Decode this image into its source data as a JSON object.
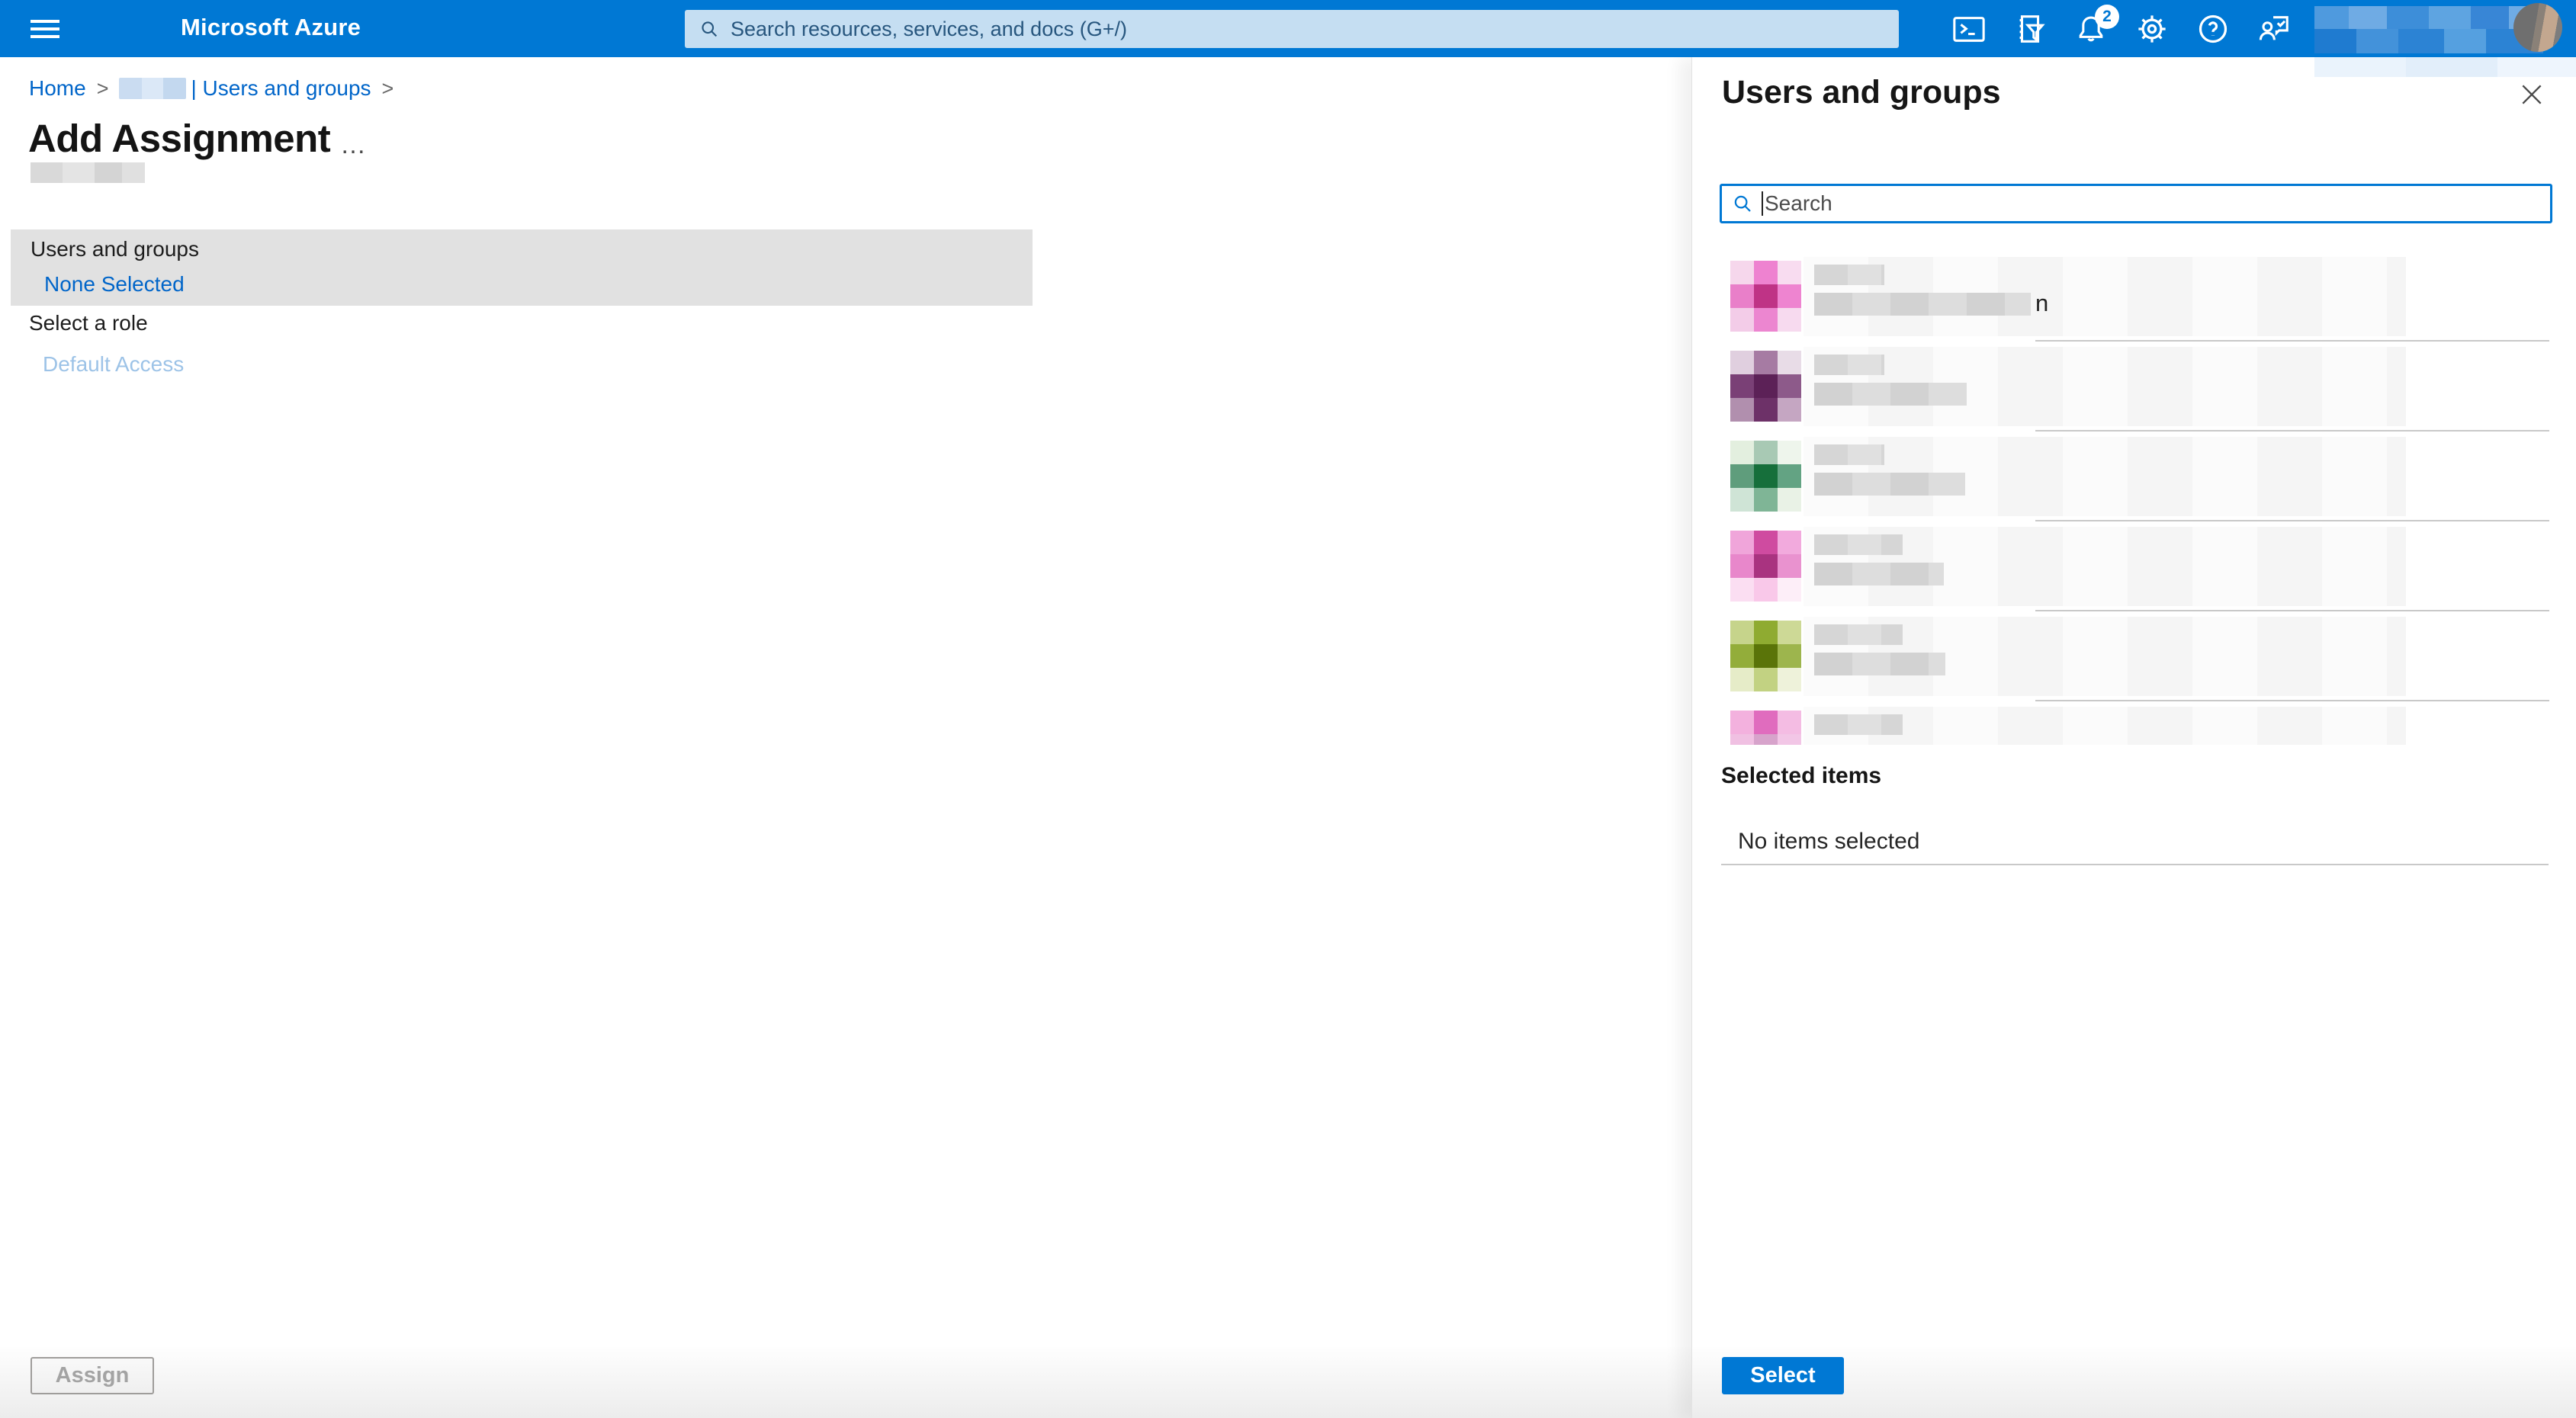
{
  "topbar": {
    "brand": "Microsoft Azure",
    "search_placeholder": "Search resources, services, and docs (G+/)",
    "notification_count": "2"
  },
  "breadcrumb": {
    "home": "Home",
    "separator": ">",
    "section": "| Users and groups"
  },
  "page": {
    "title": "Add Assignment",
    "overflow_menu": "…"
  },
  "form": {
    "users_groups_label": "Users and groups",
    "users_groups_value": "None Selected",
    "role_label": "Select a role",
    "role_value": "Default Access",
    "assign_button": "Assign"
  },
  "panel": {
    "title": "Users and groups",
    "search_placeholder": "Search",
    "selected_items_label": "Selected items",
    "no_items_text": "No items selected",
    "select_button": "Select",
    "rows": [
      {
        "avatar": [
          "#f6d7ec",
          "#ee82d0",
          "#f8dcf0",
          "#e97fc9",
          "#bf3386",
          "#ee84d0",
          "#f3cce8",
          "#ec86d0",
          "#f7daef"
        ],
        "bars": [
          92,
          284
        ],
        "remnant": "n"
      },
      {
        "avatar": [
          "#e0cfdf",
          "#a67ba3",
          "#e8dce7",
          "#7a4076",
          "#5c2157",
          "#8d5a8a",
          "#b18fae",
          "#6d3168",
          "#c5a6c2"
        ],
        "bars": [
          92,
          200
        ],
        "remnant": ""
      },
      {
        "avatar": [
          "#e3efdf",
          "#a8c9b4",
          "#eef5ec",
          "#5f9d7c",
          "#166f3b",
          "#63a383",
          "#cfe4d6",
          "#7fb596",
          "#e9f2e6"
        ],
        "bars": [
          92,
          198
        ],
        "remnant": ""
      },
      {
        "avatar": [
          "#f0a5da",
          "#cf4ba0",
          "#f2aadd",
          "#e887cb",
          "#a93380",
          "#e992cf",
          "#fbdef2",
          "#f9c8e9",
          "#fdeef8"
        ],
        "bars": [
          116,
          170
        ],
        "remnant": ""
      },
      {
        "avatar": [
          "#c6d48b",
          "#8fab31",
          "#cdd996",
          "#93ad3a",
          "#5a7409",
          "#9db54d",
          "#e6ecc8",
          "#c2d282",
          "#eef2da"
        ],
        "bars": [
          116,
          172
        ],
        "remnant": ""
      },
      {
        "avatar": [
          "#f3b1de",
          "#e06cbe",
          "#f4bce3",
          "#f0c0e2",
          "#d7a3cb",
          "#f2c6e6",
          "#ffffff",
          "#ffffff",
          "#ffffff"
        ],
        "bars": [
          116,
          0
        ],
        "remnant": ""
      }
    ]
  },
  "colors": {
    "topbar_bg": "#0078d4",
    "accent": "#0078d4",
    "link": "#0065c9",
    "disabled_link": "#9dc3e7",
    "section_bg": "#e1e1e1",
    "topbar_search_bg": "#c5def2",
    "topbar_search_text": "#27567e",
    "divider": "#c9c9c9",
    "disabled_text": "#a3a3a3",
    "disabled_border": "#9f9d9b"
  }
}
